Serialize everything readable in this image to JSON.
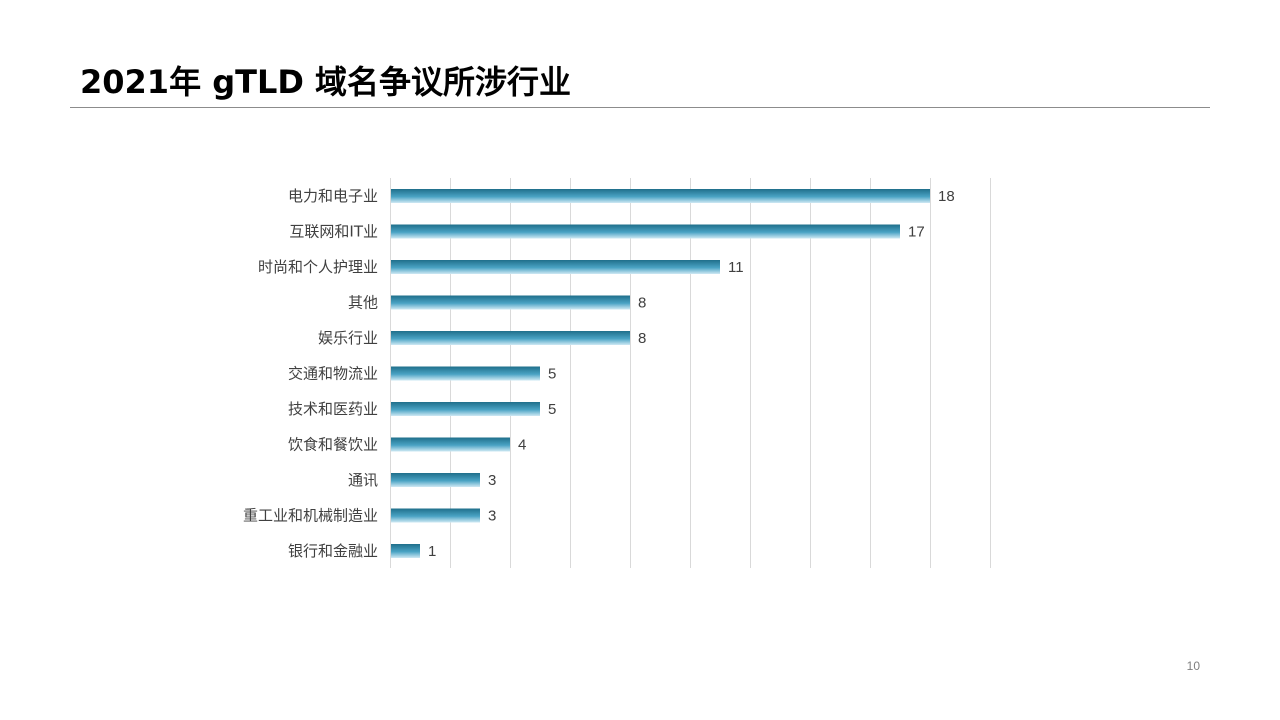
{
  "slide": {
    "title": "2021年 gTLD 域名争议所涉行业",
    "page_number": "10"
  },
  "chart_data": {
    "type": "bar",
    "orientation": "horizontal",
    "categories": [
      "电力和电子业",
      "互联网和IT业",
      "时尚和个人护理业",
      "其他",
      "娱乐行业",
      "交通和物流业",
      "技术和医药业",
      "饮食和餐饮业",
      "通讯",
      "重工业和机械制造业",
      "银行和金融业"
    ],
    "values": [
      18,
      17,
      11,
      8,
      8,
      5,
      5,
      4,
      3,
      3,
      1
    ],
    "xlim": [
      0,
      20
    ],
    "x_gridline_step": 2,
    "grid": true,
    "data_labels": true,
    "legend": "none",
    "colors": {
      "bar_dark": "#1f6f8b",
      "bar_mid": "#4aa3c4",
      "bar_light": "#cfe9f4",
      "grid": "#d9d9d9",
      "text": "#404040"
    }
  }
}
